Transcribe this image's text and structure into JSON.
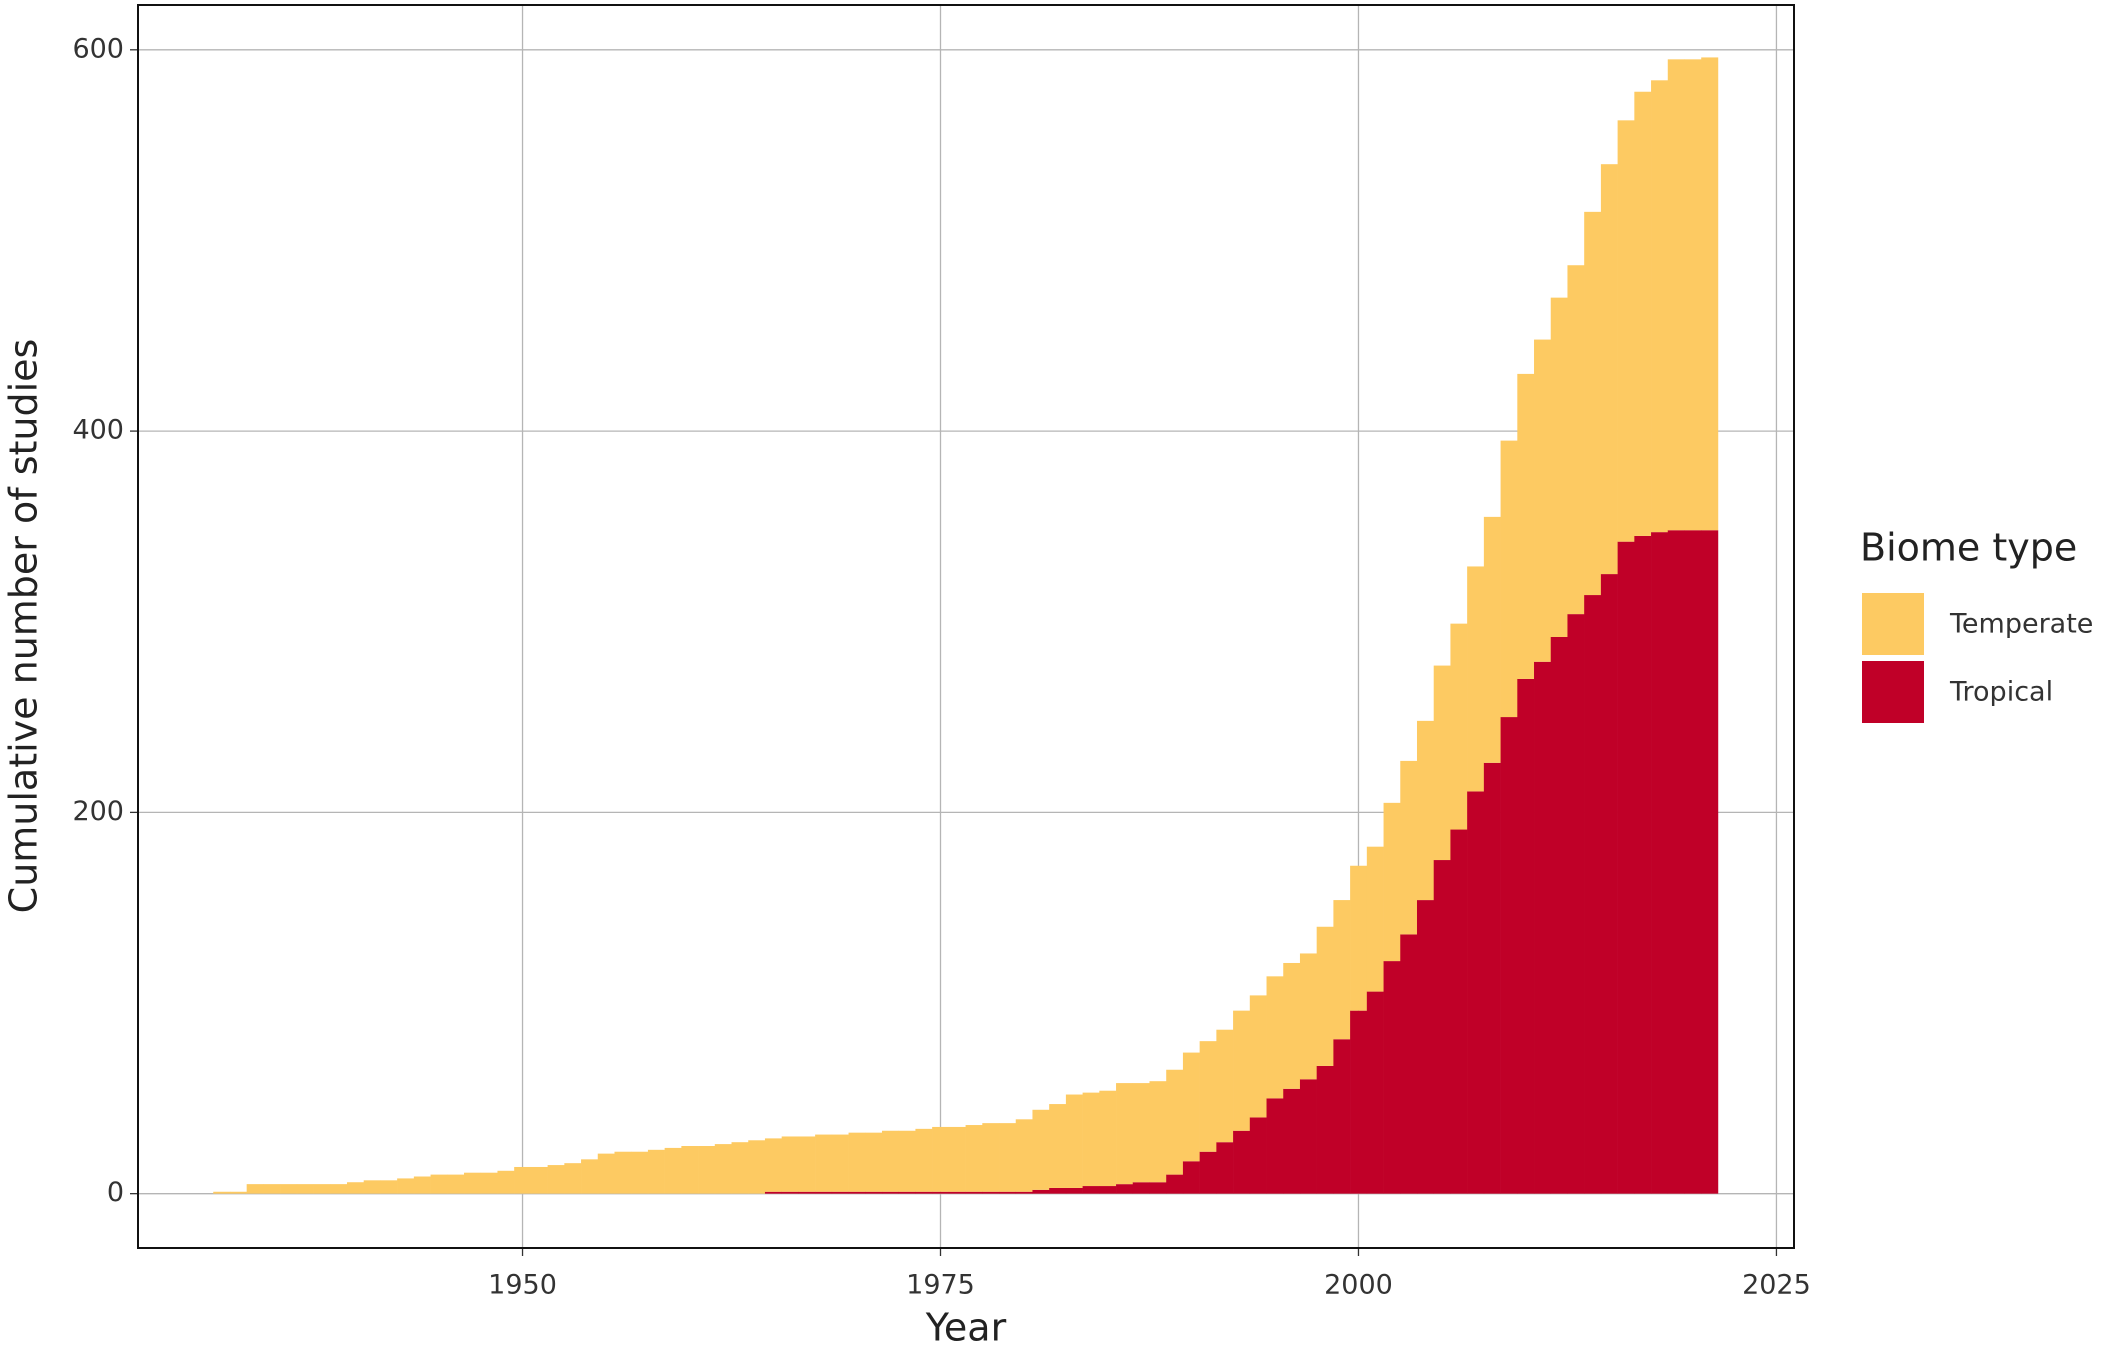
{
  "chart_data": {
    "type": "bar",
    "stacked": true,
    "x_label": "Year",
    "y_label": "Cumulative number of studies",
    "legend_title": "Biome type",
    "legend": "right",
    "x": [
      1932,
      1933,
      1934,
      1935,
      1936,
      1937,
      1938,
      1939,
      1940,
      1941,
      1942,
      1943,
      1944,
      1945,
      1946,
      1947,
      1948,
      1949,
      1950,
      1951,
      1952,
      1953,
      1954,
      1955,
      1956,
      1957,
      1958,
      1959,
      1960,
      1961,
      1962,
      1963,
      1964,
      1965,
      1966,
      1967,
      1968,
      1969,
      1970,
      1971,
      1972,
      1973,
      1974,
      1975,
      1976,
      1977,
      1978,
      1979,
      1980,
      1981,
      1982,
      1983,
      1984,
      1985,
      1986,
      1987,
      1988,
      1989,
      1990,
      1991,
      1992,
      1993,
      1994,
      1995,
      1996,
      1997,
      1998,
      1999,
      2000,
      2001,
      2002,
      2003,
      2004,
      2005,
      2006,
      2007,
      2008,
      2009,
      2010,
      2011,
      2012,
      2013,
      2014,
      2015,
      2016,
      2017,
      2018,
      2019,
      2020,
      2021
    ],
    "series": [
      {
        "name": "Temperate",
        "color": "#fdca62",
        "values": [
          1,
          1,
          5,
          5,
          5,
          5,
          5,
          5,
          6,
          7,
          7,
          8,
          9,
          10,
          10,
          11,
          11,
          12,
          14,
          14,
          15,
          16,
          18,
          21,
          22,
          22,
          23,
          24,
          25,
          25,
          26,
          27,
          28,
          28,
          29,
          29,
          30,
          30,
          31,
          31,
          32,
          32,
          33,
          34,
          34,
          35,
          36,
          36,
          38,
          42,
          44,
          49,
          49,
          50,
          53,
          52,
          53,
          55,
          57,
          58,
          59,
          63,
          64,
          64,
          66,
          66,
          73,
          73,
          76,
          76,
          83,
          91,
          94,
          102,
          108,
          118,
          129,
          145,
          160,
          169,
          178,
          183,
          201,
          215,
          221,
          233,
          237,
          247,
          247,
          248
        ]
      },
      {
        "name": "Tropical",
        "color": "#c00028",
        "values": [
          0,
          0,
          0,
          0,
          0,
          0,
          0,
          0,
          0,
          0,
          0,
          0,
          0,
          0,
          0,
          0,
          0,
          0,
          0,
          0,
          0,
          0,
          0,
          0,
          0,
          0,
          0,
          0,
          0,
          0,
          0,
          0,
          0,
          1,
          1,
          1,
          1,
          1,
          1,
          1,
          1,
          1,
          1,
          1,
          1,
          1,
          1,
          1,
          1,
          2,
          3,
          3,
          4,
          4,
          5,
          6,
          6,
          10,
          17,
          22,
          27,
          33,
          40,
          50,
          55,
          60,
          67,
          81,
          96,
          106,
          122,
          136,
          154,
          175,
          191,
          211,
          226,
          250,
          270,
          279,
          292,
          304,
          314,
          325,
          342,
          345,
          347,
          348,
          348,
          348
        ]
      }
    ],
    "xlim": [
      1927,
      2026.05
    ],
    "xticks": [
      1950,
      1975,
      2000,
      2025
    ],
    "ylim": [
      -28.5,
      623.5
    ],
    "yticks": [
      0,
      200,
      400,
      600
    ],
    "grid": true
  }
}
